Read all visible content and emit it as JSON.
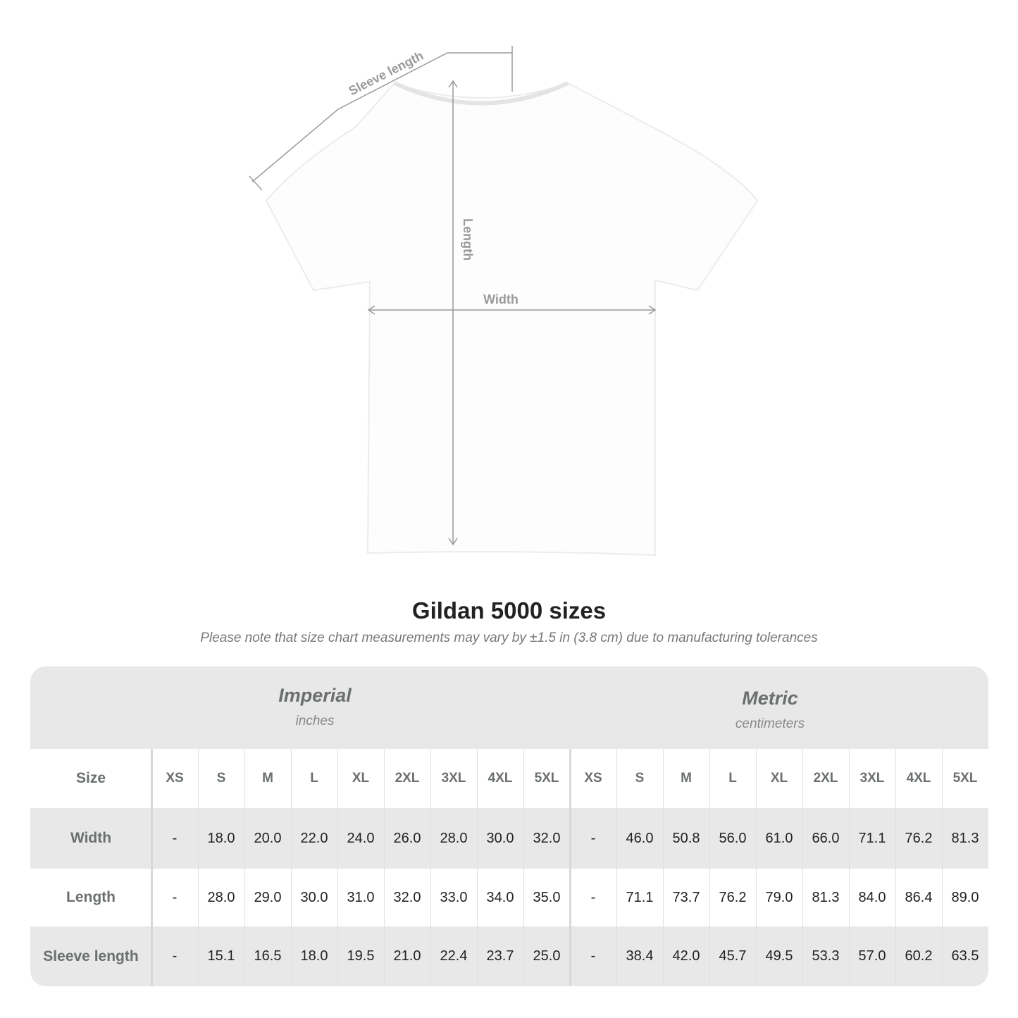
{
  "diagram": {
    "sleeve_label": "Sleeve length",
    "length_label": "Length",
    "width_label": "Width"
  },
  "title": "Gildan 5000 sizes",
  "subtitle": "Please note that size chart measurements may vary by ±1.5 in (3.8 cm) due to manufacturing tolerances",
  "table": {
    "imperial": {
      "name": "Imperial",
      "unit": "inches"
    },
    "metric": {
      "name": "Metric",
      "unit": "centimeters"
    },
    "size_label": "Size",
    "sizes": [
      "XS",
      "S",
      "M",
      "L",
      "XL",
      "2XL",
      "3XL",
      "4XL",
      "5XL"
    ],
    "rows": [
      {
        "label": "Width",
        "imperial": [
          "-",
          "18.0",
          "20.0",
          "22.0",
          "24.0",
          "26.0",
          "28.0",
          "30.0",
          "32.0"
        ],
        "metric": [
          "-",
          "46.0",
          "50.8",
          "56.0",
          "61.0",
          "66.0",
          "71.1",
          "76.2",
          "81.3"
        ]
      },
      {
        "label": "Length",
        "imperial": [
          "-",
          "28.0",
          "29.0",
          "30.0",
          "31.0",
          "32.0",
          "33.0",
          "34.0",
          "35.0"
        ],
        "metric": [
          "-",
          "71.1",
          "73.7",
          "76.2",
          "79.0",
          "81.3",
          "84.0",
          "86.4",
          "89.0"
        ]
      },
      {
        "label": "Sleeve length",
        "imperial": [
          "-",
          "15.1",
          "16.5",
          "18.0",
          "19.5",
          "21.0",
          "22.4",
          "23.7",
          "25.0"
        ],
        "metric": [
          "-",
          "38.4",
          "42.0",
          "45.7",
          "49.5",
          "53.3",
          "57.0",
          "60.2",
          "63.5"
        ]
      }
    ]
  }
}
